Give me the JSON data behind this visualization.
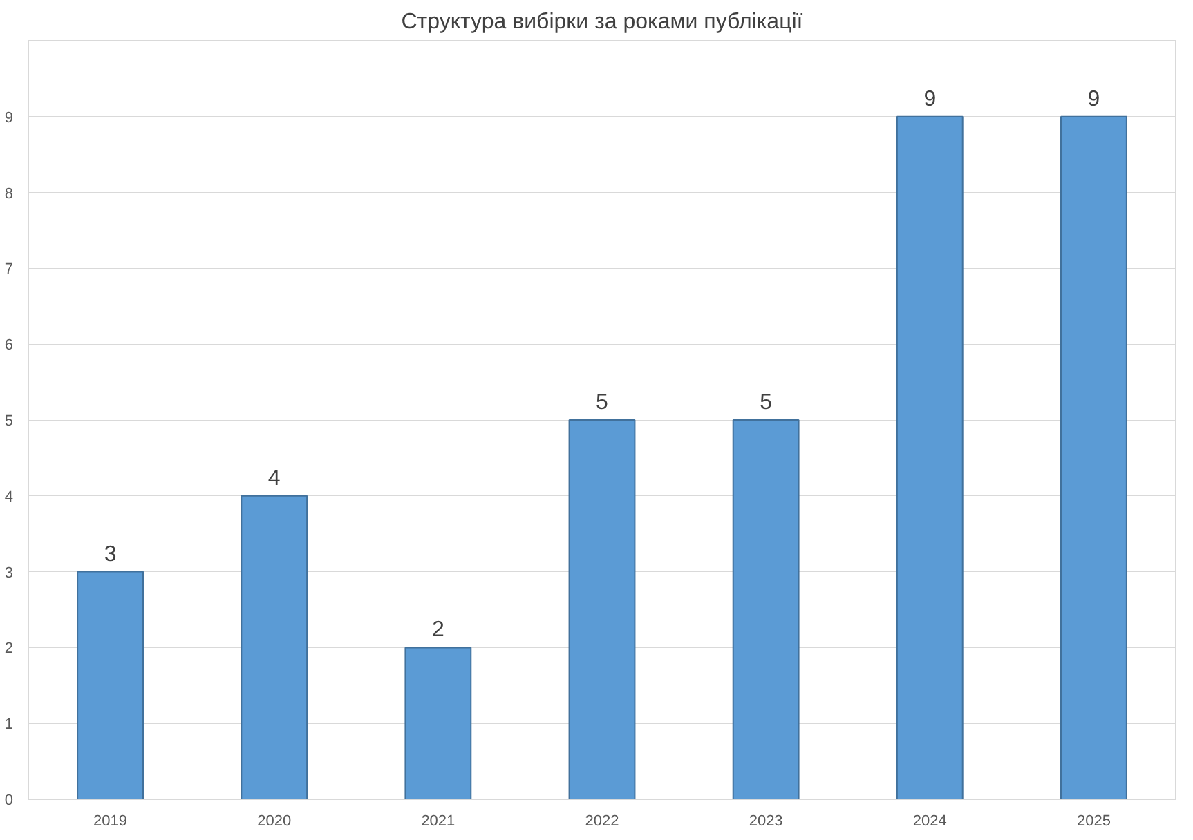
{
  "chart_data": {
    "type": "bar",
    "title": "Структура вибірки за роками публікації",
    "categories": [
      "2019",
      "2020",
      "2021",
      "2022",
      "2023",
      "2024",
      "2025"
    ],
    "values": [
      3,
      4,
      2,
      5,
      5,
      9,
      9
    ],
    "color": "#5b9bd5",
    "ylim": [
      0,
      10
    ],
    "yticks": [
      0,
      1,
      2,
      3,
      4,
      5,
      6,
      7,
      8,
      9,
      {
        "value": 10,
        "label": null
      }
    ],
    "grid": "y",
    "data_labels": true
  }
}
